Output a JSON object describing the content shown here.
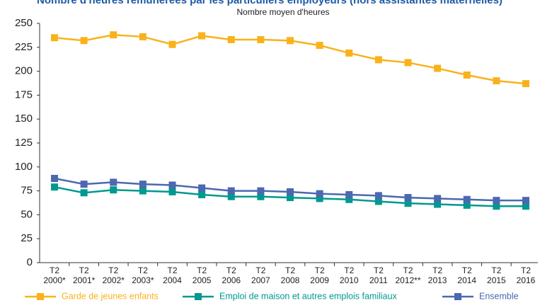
{
  "chart_data": {
    "type": "line",
    "title": "Nombre d'heures rémunérées par les particuliers employeurs (hors assistantes maternelles)",
    "subtitle": "Nombre moyen d'heures",
    "categories": [
      "T2 2000*",
      "T2 2001*",
      "T2 2002*",
      "T2 2003*",
      "T2 2004",
      "T2 2005",
      "T2 2006",
      "T2 2007",
      "T2 2008",
      "T2 2009",
      "T2 2010",
      "T2 2011",
      "T2 2012**",
      "T2 2013",
      "T2 2014",
      "T2 2015",
      "T2 2016"
    ],
    "series": [
      {
        "name": "Garde de jeunes enfants",
        "color": "#f9b21b",
        "values": [
          235,
          232,
          238,
          236,
          228,
          237,
          233,
          233,
          232,
          227,
          219,
          212,
          209,
          203,
          196,
          190,
          187
        ]
      },
      {
        "name": "Emploi de maison et autres emplois familiaux",
        "color": "#00998f",
        "values": [
          79,
          73,
          76,
          75,
          74,
          71,
          69,
          69,
          68,
          67,
          66,
          64,
          62,
          61,
          60,
          59,
          59
        ]
      },
      {
        "name": "Ensemble",
        "color": "#4b68b0",
        "values": [
          88,
          82,
          84,
          82,
          81,
          78,
          75,
          75,
          74,
          72,
          71,
          70,
          68,
          67,
          66,
          65,
          65
        ]
      }
    ],
    "ylim": [
      0,
      250
    ],
    "yticks": [
      0,
      25,
      50,
      75,
      100,
      125,
      150,
      175,
      200,
      225,
      250
    ],
    "grid": false
  }
}
